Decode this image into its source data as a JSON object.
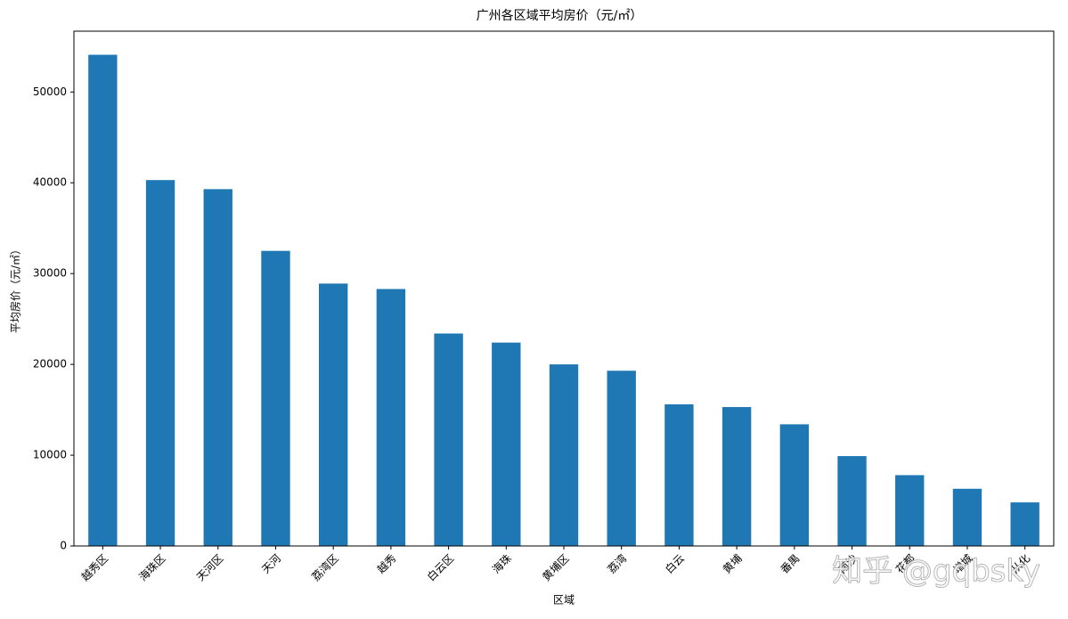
{
  "chart_data": {
    "type": "bar",
    "title": "广州各区域平均房价（元/㎡）",
    "x_label": "区域",
    "y_label": "平均房价（元/㎡）",
    "categories": [
      "越秀区",
      "海珠区",
      "天河区",
      "天河",
      "荔湾区",
      "越秀",
      "白云区",
      "海珠",
      "黄埔区",
      "荔湾",
      "白云",
      "黄埔",
      "番禺",
      "南沙",
      "花都",
      "增城",
      "从化"
    ],
    "values": [
      54100,
      40300,
      39300,
      32500,
      28900,
      28300,
      23400,
      22400,
      20000,
      19300,
      15600,
      15300,
      13400,
      9900,
      7800,
      6300,
      4800
    ],
    "color": "#1f77b4",
    "ylim": [
      0,
      56700
    ],
    "yticks": [
      0,
      10000,
      20000,
      30000,
      40000,
      50000
    ],
    "watermark": "知乎 @gqbsky"
  }
}
